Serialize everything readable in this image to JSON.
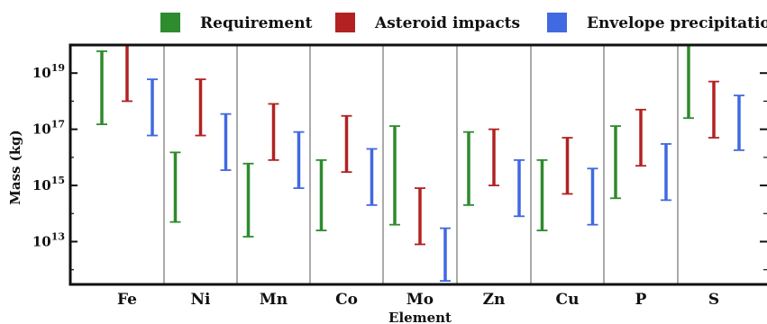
{
  "chart_data": {
    "type": "range-bar",
    "title": "",
    "xlabel": "Element",
    "ylabel": "Mass (kg)",
    "yscale": "log",
    "ylim": [
      300000000000.0,
      1e+20
    ],
    "yticks": [
      {
        "value": 10000000000000.0,
        "base": "10",
        "exp": "13"
      },
      {
        "value": 1000000000000000.0,
        "base": "10",
        "exp": "15"
      },
      {
        "value": 1e+17,
        "base": "10",
        "exp": "17"
      },
      {
        "value": 1e+19,
        "base": "10",
        "exp": "19"
      }
    ],
    "grid": false,
    "legend_position": "top",
    "categories": [
      "Fe",
      "Ni",
      "Mn",
      "Co",
      "Mo",
      "Zn",
      "Cu",
      "P",
      "S"
    ],
    "series": [
      {
        "name": "Requirement",
        "color": "#2e8b2e",
        "ranges": [
          [
            1.5e+17,
            6e+19
          ],
          [
            50000000000000.0,
            1.5e+16
          ],
          [
            15000000000000.0,
            6000000000000000.0
          ],
          [
            25000000000000.0,
            8000000000000000.0
          ],
          [
            40000000000000.0,
            1.3e+17
          ],
          [
            200000000000000.0,
            8e+16
          ],
          [
            25000000000000.0,
            8000000000000000.0
          ],
          [
            350000000000000.0,
            1.3e+17
          ],
          [
            2.5e+17,
            1e+20
          ]
        ]
      },
      {
        "name": "Asteroid impacts",
        "color": "#b22222",
        "ranges": [
          [
            1e+18,
            1e+20
          ],
          [
            6e+16,
            6e+18
          ],
          [
            8000000000000000.0,
            8e+17
          ],
          [
            3000000000000000.0,
            3e+17
          ],
          [
            8000000000000.0,
            800000000000000.0
          ],
          [
            1000000000000000.0,
            1e+17
          ],
          [
            500000000000000.0,
            5e+16
          ],
          [
            5000000000000000.0,
            5e+17
          ],
          [
            5e+16,
            5e+18
          ]
        ]
      },
      {
        "name": "Envelope precipitation",
        "color": "#4169e1",
        "ranges": [
          [
            6e+16,
            6e+18
          ],
          [
            3500000000000000.0,
            3.5e+17
          ],
          [
            800000000000000.0,
            8e+16
          ],
          [
            200000000000000.0,
            2e+16
          ],
          [
            400000000000.0,
            30000000000000.0
          ],
          [
            80000000000000.0,
            8000000000000000.0
          ],
          [
            40000000000000.0,
            4000000000000000.0
          ],
          [
            300000000000000.0,
            3e+16
          ],
          [
            1.8e+16,
            1.6e+18
          ]
        ]
      }
    ]
  }
}
